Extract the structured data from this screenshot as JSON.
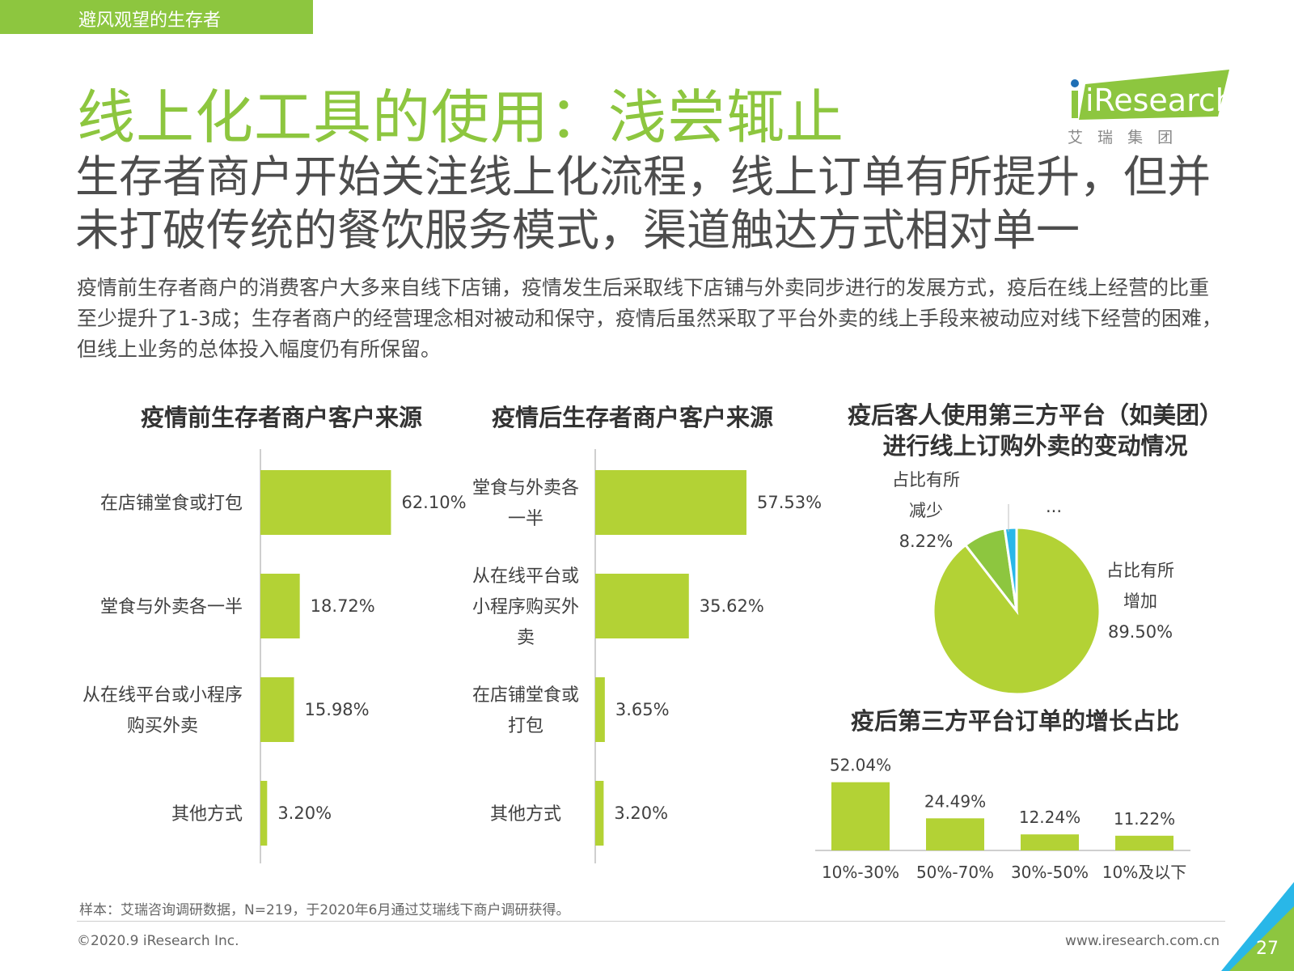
{
  "section_tag": "避风观望的生存者",
  "title": "线上化工具的使用：浅尝辄止",
  "subtitle": "生存者商户开始关注线上化流程，线上订单有所提升，但并未打破传统的餐饮服务模式，渠道触达方式相对单一",
  "body": "疫情前生存者商户的消费客户大多来自线下店铺，疫情发生后采取线下店铺与外卖同步进行的发展方式，疫后在线上经营的比重至少提升了1-3成；生存者商户的经营理念相对被动和保守，疫情后虽然采取了平台外卖的线上手段来被动应对线下经营的困难，但线上业务的总体投入幅度仍有所保留。",
  "logo": {
    "text": "iResearch",
    "cn": "艾 瑞 集 团"
  },
  "colors": {
    "accent": "#8dc63f",
    "bar": "#b3d235",
    "pie_blue": "#29b7e8",
    "dark_green": "#5fa83a"
  },
  "chart_data": [
    {
      "type": "bar",
      "orientation": "horizontal",
      "title": "疫情前生存者商户客户来源",
      "categories": [
        [
          "在店铺堂食或打包"
        ],
        [
          "堂食与外卖各一半"
        ],
        [
          "从在线平台或小程序",
          "购买外卖"
        ],
        [
          "其他方式"
        ]
      ],
      "values": [
        62.1,
        18.72,
        15.98,
        3.2
      ],
      "labels": [
        "62.10%",
        "18.72%",
        "15.98%",
        "3.20%"
      ]
    },
    {
      "type": "bar",
      "orientation": "horizontal",
      "title": "疫情后生存者商户客户来源",
      "categories": [
        [
          "堂食与外卖各",
          "一半"
        ],
        [
          "从在线平台或",
          "小程序购买外",
          "卖"
        ],
        [
          "在店铺堂食或",
          "打包"
        ],
        [
          "其他方式"
        ]
      ],
      "values": [
        57.53,
        35.62,
        3.65,
        3.2
      ],
      "labels": [
        "57.53%",
        "35.62%",
        "3.65%",
        "3.20%"
      ]
    },
    {
      "type": "pie",
      "title": "疫后客人使用第三方平台（如美团）进行线上订购外卖的变动情况",
      "slices": [
        {
          "label": [
            "占比有所",
            "增加"
          ],
          "value": 89.5,
          "value_label": "89.50%",
          "color": "#b3d235"
        },
        {
          "label": [
            "占比有所",
            "减少"
          ],
          "value": 8.22,
          "value_label": "8.22%",
          "color": "#8dc63f"
        },
        {
          "label": [
            "..."
          ],
          "value": 2.28,
          "value_label": "",
          "color": "#29b7e8"
        }
      ]
    },
    {
      "type": "bar",
      "orientation": "vertical",
      "title": "疫后第三方平台订单的增长占比",
      "categories": [
        "10%-30%",
        "50%-70%",
        "30%-50%",
        "10%及以下"
      ],
      "values": [
        52.04,
        24.49,
        12.24,
        11.22
      ],
      "labels": [
        "52.04%",
        "24.49%",
        "12.24%",
        "11.22%"
      ]
    }
  ],
  "footnote": "样本：艾瑞咨询调研数据，N=219，于2020年6月通过艾瑞线下商户调研获得。",
  "copyright": "©2020.9 iResearch Inc.",
  "website": "www.iresearch.com.cn",
  "page_number": "27"
}
